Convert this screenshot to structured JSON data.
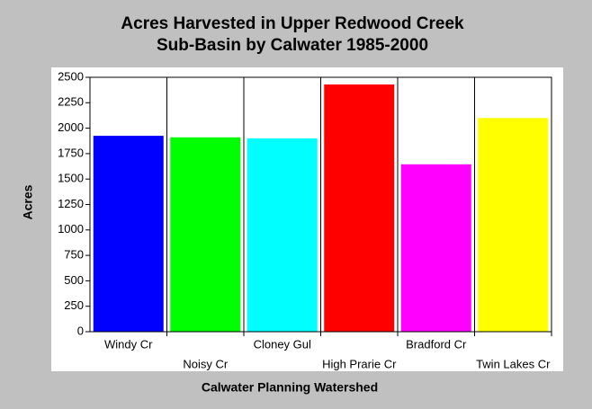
{
  "chart_data": {
    "type": "bar",
    "title": [
      "Acres Harvested in Upper Redwood Creek",
      "Sub-Basin by Calwater 1985-2000"
    ],
    "x_label": "Calwater Planning Watershed",
    "y_label": "Acres",
    "categories": [
      "Windy Cr",
      "Noisy Cr",
      "Cloney Gul",
      "High Prarie Cr",
      "Bradford Cr",
      "Twin Lakes Cr"
    ],
    "values": [
      1925,
      1910,
      1900,
      2430,
      1645,
      2100
    ],
    "colors": [
      "#0000ff",
      "#00ff00",
      "#00ffff",
      "#ff0000",
      "#ff00ff",
      "#ffff00"
    ],
    "ylim": [
      0,
      2500
    ],
    "yticks": [
      0,
      250,
      500,
      750,
      1000,
      1250,
      1500,
      1750,
      2000,
      2250,
      2500
    ],
    "grid": "x"
  }
}
